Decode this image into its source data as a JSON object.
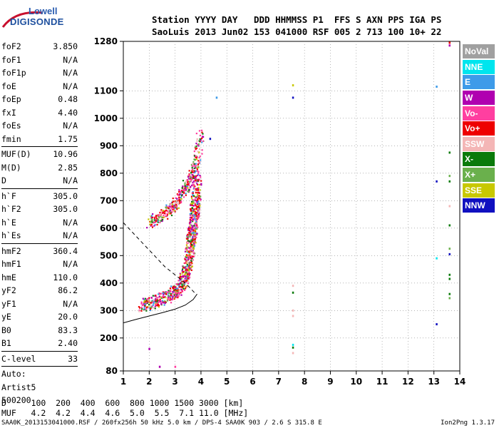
{
  "logo": {
    "line1": "Lowell",
    "line2": "DIGISONDE"
  },
  "header": {
    "line1": "Station YYYY DAY   DDD HHMMSS P1  FFS S AXN PPS IGA PS",
    "line2": "SaoLuis 2013 Jun02 153 041000 RSF 005 2 713 100 10+ 22"
  },
  "params": {
    "group1": [
      {
        "label": "foF2",
        "value": "3.850"
      },
      {
        "label": "foF1",
        "value": "N/A"
      },
      {
        "label": "foF1p",
        "value": "N/A"
      },
      {
        "label": "foE",
        "value": "N/A"
      },
      {
        "label": "foEp",
        "value": "0.48"
      },
      {
        "label": "fxI",
        "value": "4.40"
      },
      {
        "label": "foEs",
        "value": "N/A"
      },
      {
        "label": "fmin",
        "value": "1.75"
      }
    ],
    "group2": [
      {
        "label": "MUF(D)",
        "value": "10.96"
      },
      {
        "label": "M(D)",
        "value": "2.85"
      },
      {
        "label": "D",
        "value": "N/A"
      }
    ],
    "group3": [
      {
        "label": "h`F",
        "value": "305.0"
      },
      {
        "label": "h`F2",
        "value": "305.0"
      },
      {
        "label": "h`E",
        "value": "N/A"
      },
      {
        "label": "h`Es",
        "value": "N/A"
      }
    ],
    "group4": [
      {
        "label": "hmF2",
        "value": "360.4"
      },
      {
        "label": "hmF1",
        "value": "N/A"
      },
      {
        "label": "hmE",
        "value": "110.0"
      },
      {
        "label": "yF2",
        "value": "86.2"
      },
      {
        "label": "yF1",
        "value": "N/A"
      },
      {
        "label": "yE",
        "value": "20.0"
      },
      {
        "label": "B0",
        "value": "83.3"
      },
      {
        "label": "B1",
        "value": "2.40"
      }
    ],
    "group5": [
      {
        "label": "C-level",
        "value": "33"
      }
    ],
    "auto": [
      "Auto:",
      "Artist5",
      "500200"
    ]
  },
  "legend": [
    {
      "label": "NoVal",
      "color": "#a0a0a0"
    },
    {
      "label": "NNE",
      "color": "#00e5ee"
    },
    {
      "label": "E",
      "color": "#3d9be9"
    },
    {
      "label": "W",
      "color": "#b000b0"
    },
    {
      "label": "Vo-",
      "color": "#ff3fa0"
    },
    {
      "label": "Vo+",
      "color": "#ee0000"
    },
    {
      "label": "SSW",
      "color": "#f4b6b6"
    },
    {
      "label": "X-",
      "color": "#0a7a0a"
    },
    {
      "label": "X+",
      "color": "#6ab04c"
    },
    {
      "label": "SSE",
      "color": "#c8c800"
    },
    {
      "label": "NNW",
      "color": "#1010c0"
    }
  ],
  "footer": {
    "line1": "D     100  200  400  600  800 1000 1500 3000 [km]",
    "line2": "MUF   4.2  4.2  4.4  4.6  5.0  5.5  7.1 11.0 [MHz]",
    "file_line": "SAA0K_2013153041000.RSF / 260fx256h 50 kHz 5.0 km / DPS-4 SAA0K 903 / 2.6 S 315.8 E",
    "version": "Ion2Png 1.3.17"
  },
  "chart_data": {
    "type": "scatter",
    "xlabel": "",
    "ylabel": "",
    "xlim": [
      1,
      14
    ],
    "ylim": [
      80,
      1280
    ],
    "xticks": [
      1,
      2,
      3,
      4,
      5,
      6,
      7,
      8,
      9,
      10,
      11,
      12,
      13,
      14
    ],
    "yticks": [
      80,
      200,
      300,
      400,
      500,
      600,
      700,
      800,
      900,
      1000,
      1100,
      1280
    ],
    "grid": "dotted",
    "legend_position": "right",
    "trace_main": [
      [
        1.7,
        320
      ],
      [
        2.0,
        330
      ],
      [
        2.3,
        340
      ],
      [
        2.6,
        350
      ],
      [
        2.9,
        365
      ],
      [
        3.1,
        380
      ],
      [
        3.3,
        410
      ],
      [
        3.4,
        440
      ],
      [
        3.5,
        480
      ],
      [
        3.55,
        520
      ],
      [
        3.6,
        560
      ],
      [
        3.65,
        600
      ],
      [
        3.7,
        640
      ],
      [
        3.75,
        680
      ],
      [
        3.8,
        730
      ],
      [
        3.82,
        780
      ]
    ],
    "trace_x": [
      [
        2.0,
        620
      ],
      [
        2.3,
        640
      ],
      [
        2.6,
        660
      ],
      [
        2.9,
        680
      ],
      [
        3.1,
        700
      ],
      [
        3.3,
        740
      ],
      [
        3.5,
        770
      ],
      [
        3.7,
        800
      ],
      [
        3.85,
        860
      ],
      [
        3.95,
        950
      ]
    ],
    "profile_line": [
      [
        1.0,
        255
      ],
      [
        1.5,
        268
      ],
      [
        2.0,
        280
      ],
      [
        2.5,
        292
      ],
      [
        3.0,
        305
      ],
      [
        3.4,
        320
      ],
      [
        3.7,
        340
      ],
      [
        3.85,
        360
      ]
    ],
    "profile_dashed": [
      [
        1.0,
        620
      ],
      [
        1.4,
        580
      ],
      [
        1.8,
        540
      ],
      [
        2.2,
        500
      ],
      [
        2.6,
        460
      ],
      [
        3.0,
        430
      ],
      [
        3.4,
        400
      ],
      [
        3.8,
        360
      ]
    ],
    "spots": [
      {
        "x": 4.6,
        "y": 1075,
        "series": "E"
      },
      {
        "x": 4.35,
        "y": 925,
        "series": "NNW"
      },
      {
        "x": 7.55,
        "y": 1120,
        "series": "SSE"
      },
      {
        "x": 7.55,
        "y": 1075,
        "series": "NNW"
      },
      {
        "x": 7.55,
        "y": 390,
        "series": "SSW"
      },
      {
        "x": 7.55,
        "y": 365,
        "series": "X-"
      },
      {
        "x": 7.55,
        "y": 300,
        "series": "SSW"
      },
      {
        "x": 7.55,
        "y": 280,
        "series": "SSW"
      },
      {
        "x": 7.55,
        "y": 175,
        "series": "NNE"
      },
      {
        "x": 7.55,
        "y": 165,
        "series": "X-"
      },
      {
        "x": 7.55,
        "y": 145,
        "series": "SSW"
      },
      {
        "x": 13.1,
        "y": 1115,
        "series": "E"
      },
      {
        "x": 13.1,
        "y": 770,
        "series": "NNW"
      },
      {
        "x": 13.1,
        "y": 490,
        "series": "NNE"
      },
      {
        "x": 13.1,
        "y": 250,
        "series": "NNW"
      },
      {
        "x": 13.6,
        "y": 1275,
        "series": "Vo+"
      },
      {
        "x": 13.6,
        "y": 1265,
        "series": "W"
      },
      {
        "x": 13.6,
        "y": 875,
        "series": "X-"
      },
      {
        "x": 13.6,
        "y": 790,
        "series": "X+"
      },
      {
        "x": 13.6,
        "y": 770,
        "series": "X-"
      },
      {
        "x": 13.6,
        "y": 680,
        "series": "SSW"
      },
      {
        "x": 13.6,
        "y": 610,
        "series": "X-"
      },
      {
        "x": 13.6,
        "y": 525,
        "series": "X+"
      },
      {
        "x": 13.6,
        "y": 505,
        "series": "NNW"
      },
      {
        "x": 13.6,
        "y": 430,
        "series": "X-"
      },
      {
        "x": 13.6,
        "y": 415,
        "series": "X-"
      },
      {
        "x": 13.6,
        "y": 360,
        "series": "X-"
      },
      {
        "x": 13.6,
        "y": 345,
        "series": "X+"
      },
      {
        "x": 2.0,
        "y": 160,
        "series": "W"
      },
      {
        "x": 2.4,
        "y": 95,
        "series": "W"
      },
      {
        "x": 3.0,
        "y": 95,
        "series": "Vo-"
      }
    ]
  }
}
